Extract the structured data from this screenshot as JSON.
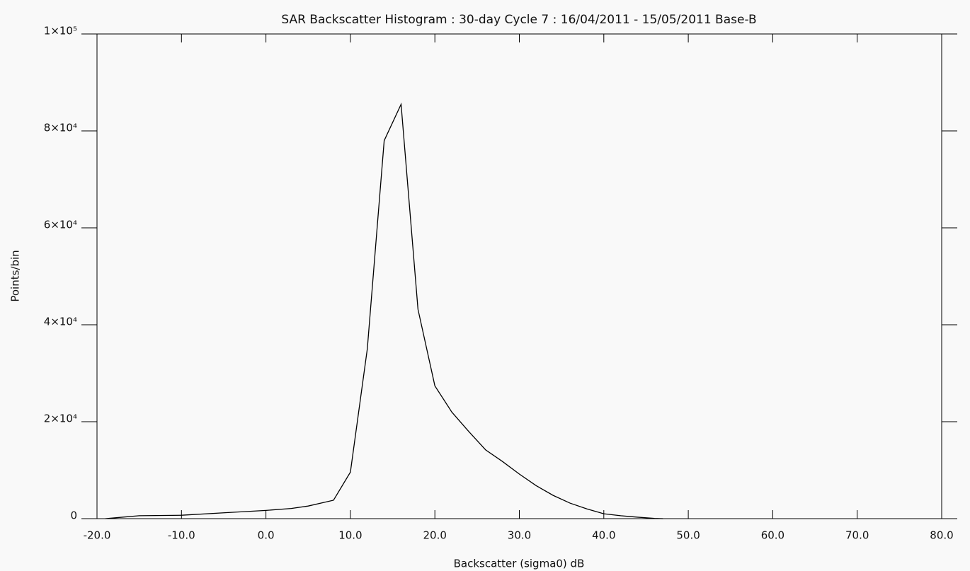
{
  "chart_data": {
    "type": "line",
    "title": "SAR Backscatter Histogram : 30-day Cycle 7 : 16/04/2011 - 15/05/2011 Base-B",
    "x_label": "Backscatter (sigma0) dB",
    "y_label": "Points/bin",
    "x": [
      -19,
      -17,
      -15,
      -10,
      -5,
      0,
      3,
      5,
      8,
      10,
      12,
      14,
      16,
      18,
      20,
      22,
      24,
      26,
      28,
      30,
      32,
      34,
      36,
      38,
      40,
      42,
      44,
      46,
      47
    ],
    "series": [
      {
        "color": "#000000",
        "values": [
          0,
          300,
          600,
          700,
          1200,
          1700,
          2100,
          2600,
          3800,
          9600,
          35000,
          78000,
          85500,
          43200,
          27400,
          22000,
          18000,
          14200,
          11800,
          9200,
          6800,
          4800,
          3200,
          2000,
          1000,
          600,
          300,
          50,
          0
        ]
      }
    ],
    "xlim": [
      -20,
      80
    ],
    "xticks": [
      {
        "value": -20,
        "label": "-20.0"
      },
      {
        "value": -10,
        "label": "-10.0"
      },
      {
        "value": 0,
        "label": "0.0"
      },
      {
        "value": 10,
        "label": "10.0"
      },
      {
        "value": 20,
        "label": "20.0"
      },
      {
        "value": 30,
        "label": "30.0"
      },
      {
        "value": 40,
        "label": "40.0"
      },
      {
        "value": 50,
        "label": "50.0"
      },
      {
        "value": 60,
        "label": "60.0"
      },
      {
        "value": 70,
        "label": "70.0"
      },
      {
        "value": 80,
        "label": "80.0"
      }
    ],
    "ylim": [
      0,
      100000
    ],
    "yticks": [
      0,
      {
        "value": 20000,
        "label": "2×10⁴"
      },
      {
        "value": 40000,
        "label": "4×10⁴"
      },
      {
        "value": 60000,
        "label": "6×10⁴"
      },
      {
        "value": 80000,
        "label": "8×10⁴"
      },
      {
        "value": 100000,
        "label": "1×10⁵"
      }
    ]
  }
}
